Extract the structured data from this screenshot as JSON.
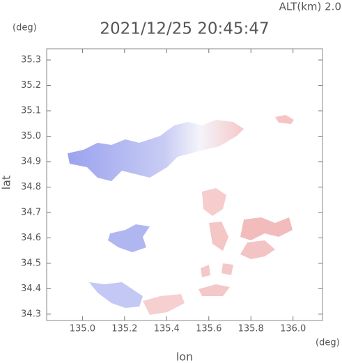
{
  "chart_data": {
    "type": "map",
    "title": "2021/12/25 20:45:47",
    "subtitle": "ALT(km) 2.0",
    "x_label": "lon",
    "y_label": "lat",
    "x_unit": "(deg)",
    "y_unit": "(deg)",
    "xlim": [
      134.83,
      136.14
    ],
    "ylim": [
      34.275,
      35.344
    ],
    "xticks": [
      {
        "value": 135,
        "label": "135.0"
      },
      135.2,
      135.4,
      135.6,
      135.8,
      {
        "value": 136,
        "label": "136.0"
      }
    ],
    "yticks": [
      34.3,
      34.4,
      34.5,
      34.6,
      34.7,
      34.8,
      34.9,
      {
        "value": 35,
        "label": "35.0"
      },
      35.1,
      35.2,
      35.3
    ]
  }
}
